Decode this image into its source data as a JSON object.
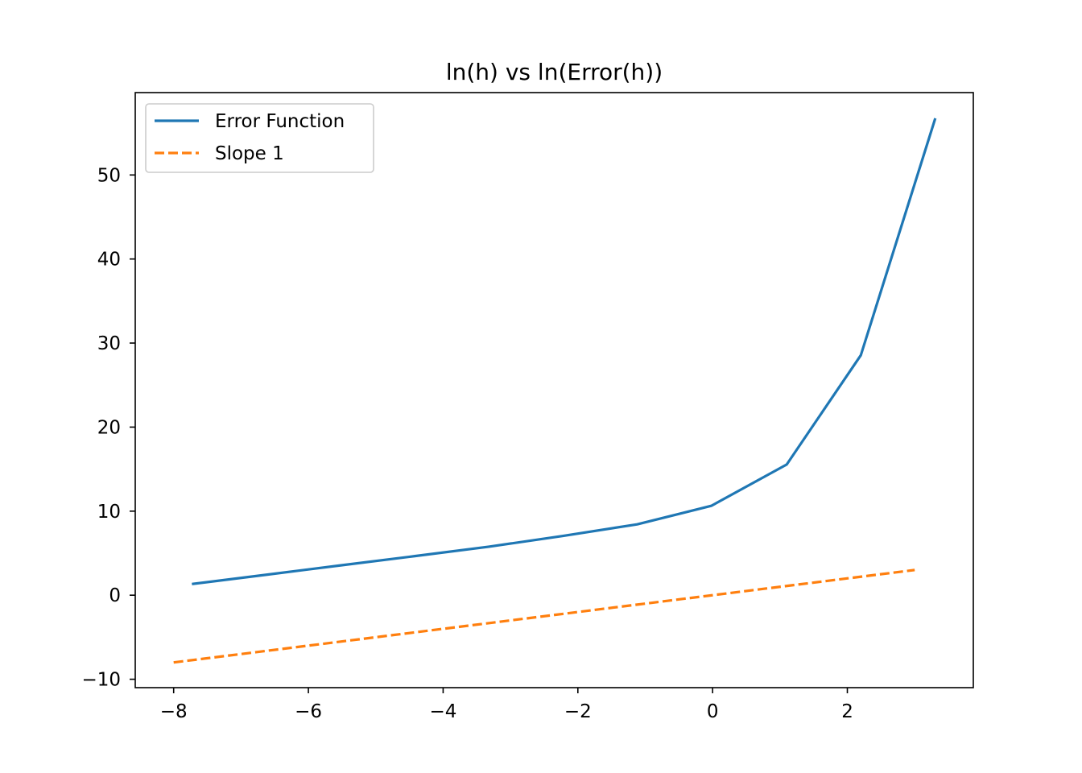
{
  "chart_data": {
    "type": "line",
    "title": "ln(h) vs ln(Error(h))",
    "xlabel": "",
    "ylabel": "",
    "xlim": [
      -8.57,
      3.87
    ],
    "ylim": [
      -11.0,
      59.8
    ],
    "xticks": [
      -8,
      -6,
      -4,
      -2,
      0,
      2
    ],
    "xtick_labels": [
      "−8",
      "−6",
      "−4",
      "−2",
      "0",
      "2"
    ],
    "yticks": [
      -10,
      0,
      10,
      20,
      30,
      40,
      50
    ],
    "ytick_labels": [
      "−10",
      "0",
      "10",
      "20",
      "30",
      "40",
      "50"
    ],
    "grid": false,
    "legend": {
      "position": "top-left"
    },
    "series": [
      {
        "name": "Error Function",
        "color": "#1f77b4",
        "style": "solid",
        "points": [
          [
            -7.71,
            1.35
          ],
          [
            -6.61,
            2.45
          ],
          [
            -5.52,
            3.55
          ],
          [
            -4.42,
            4.65
          ],
          [
            -3.32,
            5.77
          ],
          [
            -2.22,
            7.05
          ],
          [
            -1.12,
            8.43
          ],
          [
            -0.02,
            10.63
          ],
          [
            1.1,
            15.55
          ],
          [
            2.2,
            28.55
          ],
          [
            3.3,
            56.6
          ]
        ]
      },
      {
        "name": "Slope 1",
        "color": "#ff7f0e",
        "style": "dashed",
        "points": [
          [
            -8,
            -8
          ],
          [
            3,
            3
          ]
        ]
      }
    ]
  }
}
